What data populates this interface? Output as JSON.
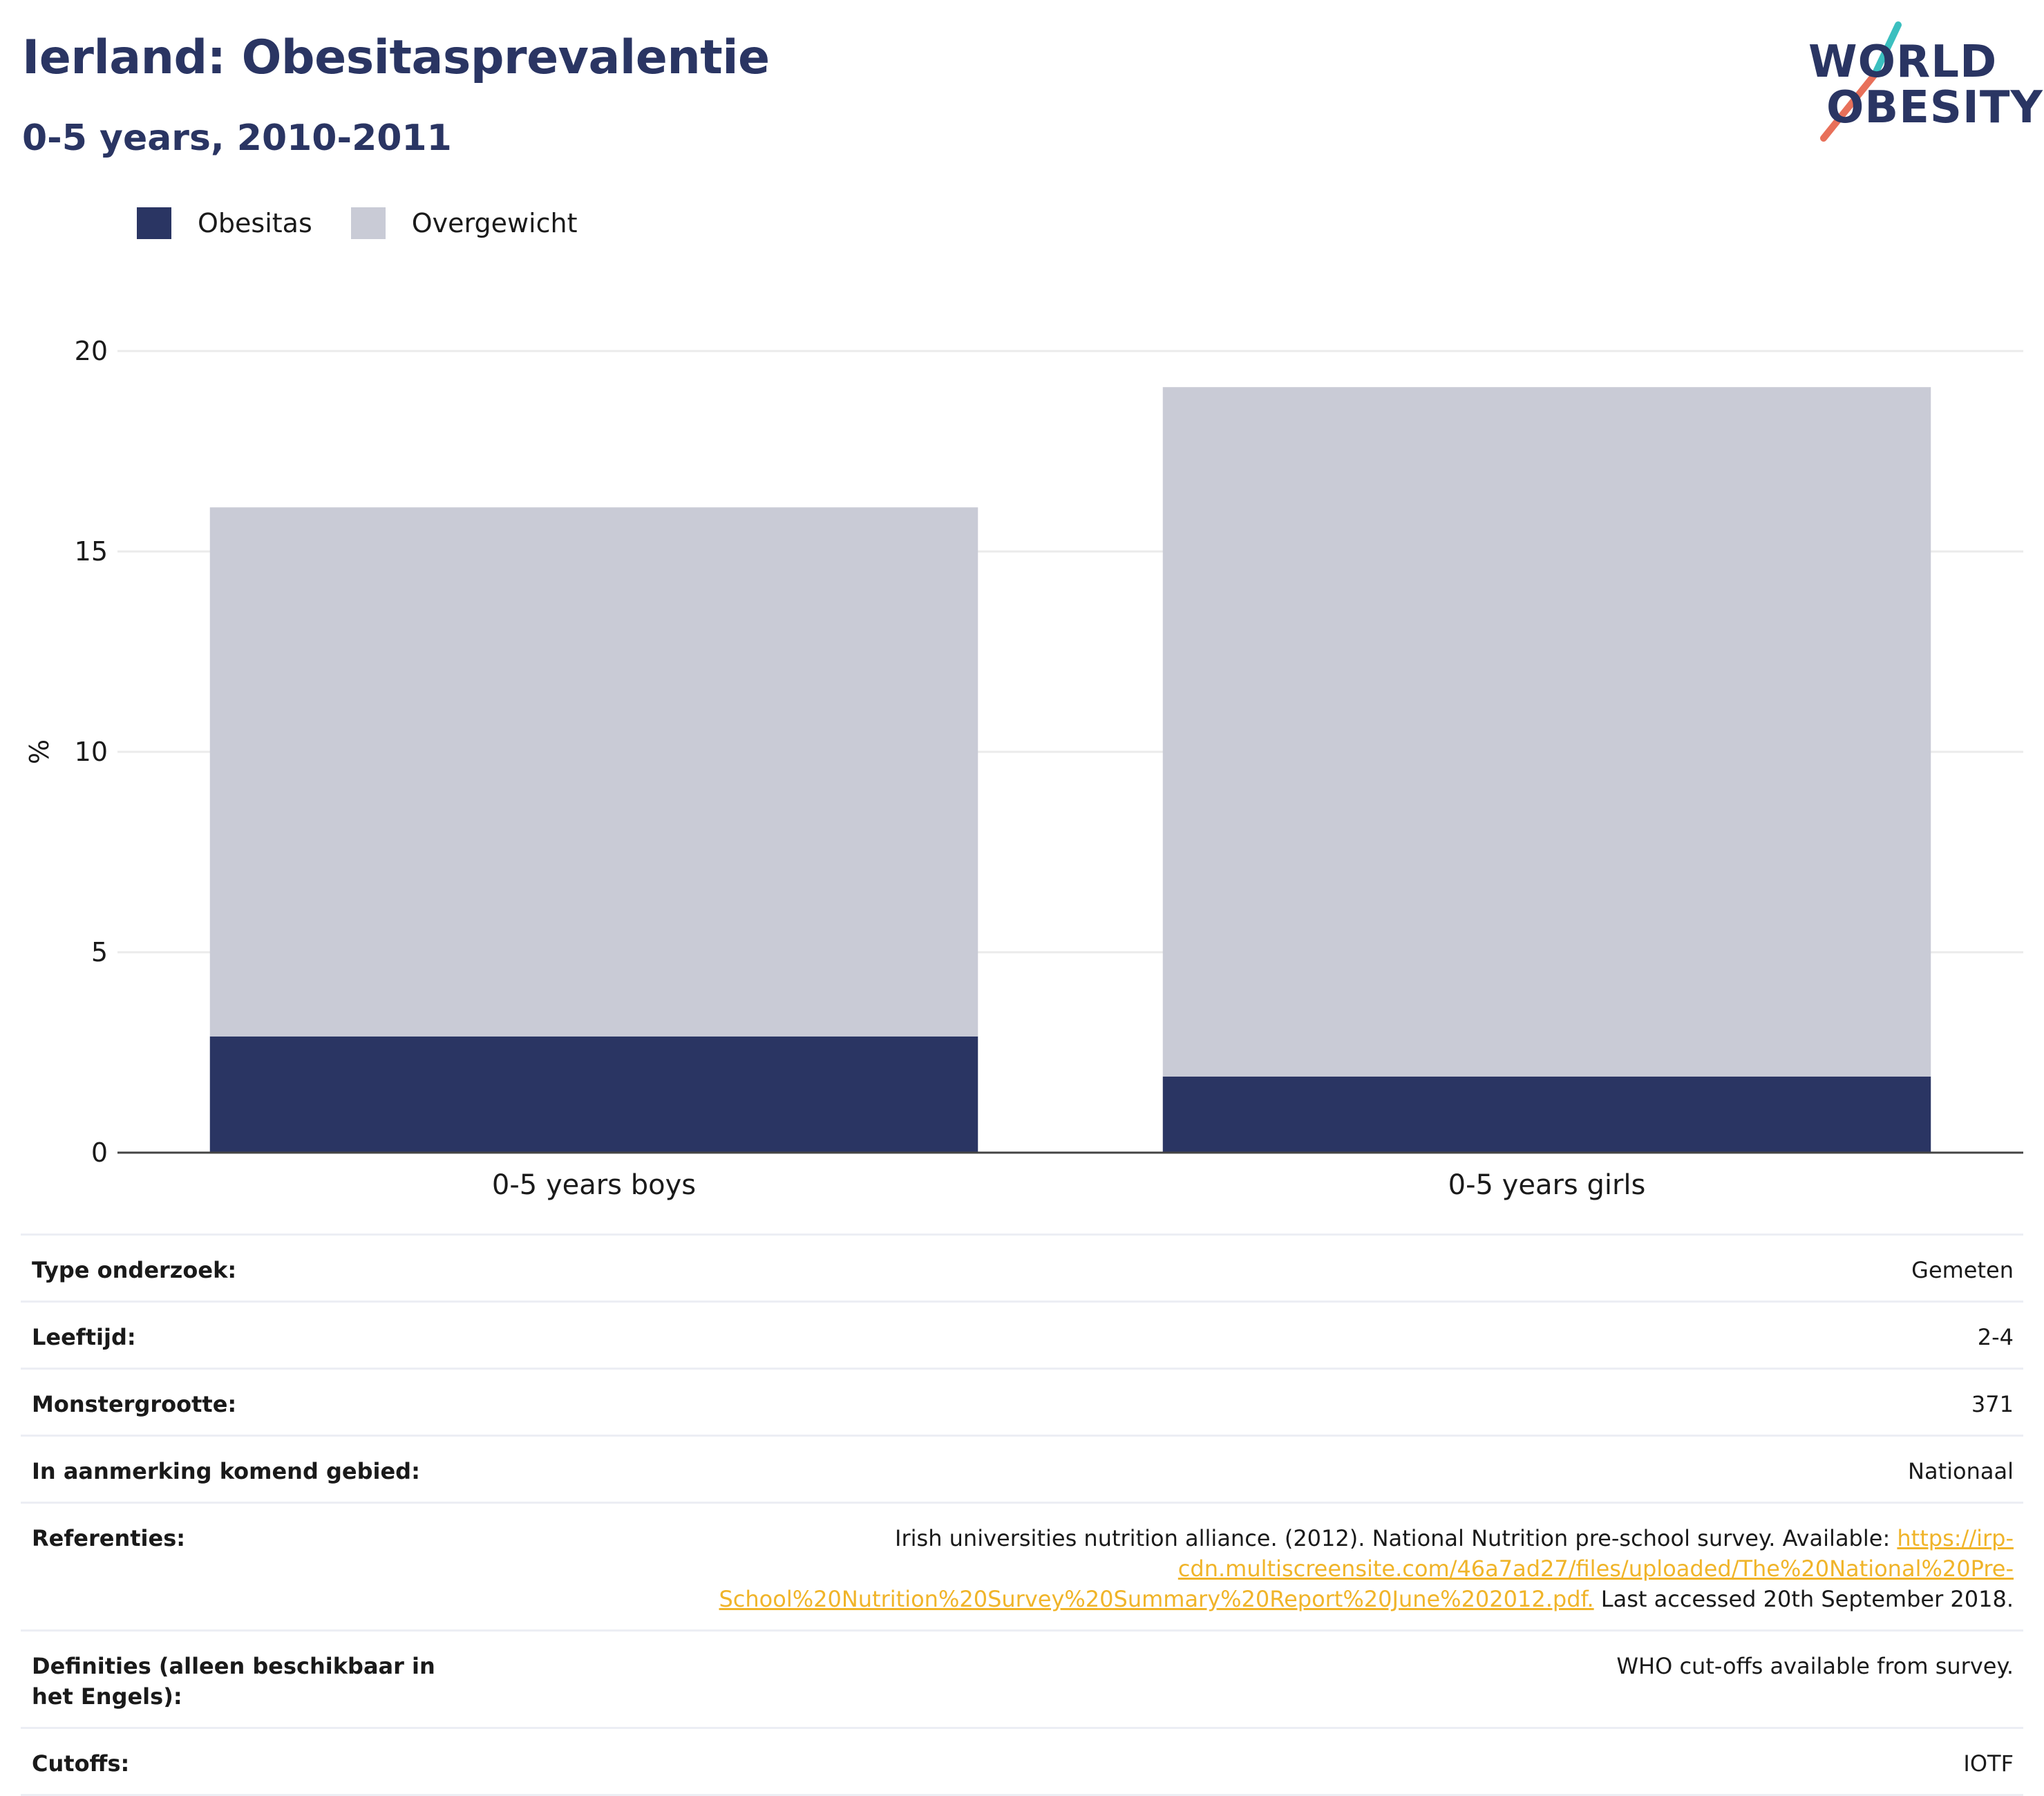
{
  "header": {
    "title": "Ierland: Obesitasprevalentie",
    "subtitle": "0-5 years, 2010-2011",
    "logo_line1": "WORLD",
    "logo_line2": "OBESITY"
  },
  "legend": [
    {
      "label": "Obesitas",
      "color": "#2a3563"
    },
    {
      "label": "Overgewicht",
      "color": "#c9cbd6"
    }
  ],
  "chart_data": {
    "type": "bar",
    "stacked": true,
    "categories": [
      "0-5 years boys",
      "0-5 years girls"
    ],
    "series": [
      {
        "name": "Obesitas",
        "values": [
          2.9,
          1.9
        ],
        "color": "#2a3563"
      },
      {
        "name": "Overgewicht",
        "values": [
          13.2,
          17.2
        ],
        "color": "#c9cbd6"
      }
    ],
    "ylabel": "%",
    "ylim": [
      0,
      20
    ],
    "yticks": [
      0,
      5,
      10,
      15,
      20
    ],
    "grid": true,
    "legend_position": "top-left"
  },
  "info": {
    "rows": [
      {
        "label": "Type onderzoek:",
        "value": "Gemeten"
      },
      {
        "label": "Leeftijd:",
        "value": "2-4"
      },
      {
        "label": "Monstergrootte:",
        "value": "371"
      },
      {
        "label": "In aanmerking komend gebied:",
        "value": "Nationaal"
      }
    ],
    "references": {
      "label": "Referenties:",
      "text_before": "Irish universities nutrition alliance. (2012). National Nutrition pre-school survey. Available: ",
      "link": "https://irp-cdn.multiscreensite.com/46a7ad27/files/uploaded/The%20National%20Pre-School%20Nutrition%20Survey%20Summary%20Report%20June%202012.pdf.",
      "text_after": " Last accessed 20th September 2018."
    },
    "rows_after": [
      {
        "label": "Definities (alleen beschikbaar in het Engels):",
        "value": "WHO cut-offs available from survey."
      },
      {
        "label": "Cutoffs:",
        "value": "IOTF"
      }
    ]
  }
}
